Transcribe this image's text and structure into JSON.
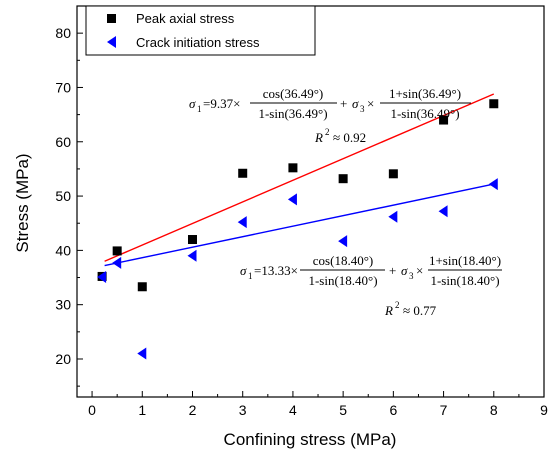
{
  "chart_data": {
    "type": "scatter",
    "xlabel": "Confining stress (MPa)",
    "ylabel": "Stress (MPa)",
    "xlim": [
      -0.3,
      9
    ],
    "ylim": [
      13,
      85
    ],
    "xticks": [
      "0",
      "1",
      "2",
      "3",
      "4",
      "5",
      "6",
      "7",
      "8",
      "9"
    ],
    "yticks": [
      "20",
      "30",
      "40",
      "50",
      "60",
      "70",
      "80"
    ],
    "grid": false,
    "legend_position": "top-left",
    "series": [
      {
        "name": "Peak axial stress",
        "marker": "square",
        "color": "#000000",
        "points": [
          [
            0.2,
            35.2
          ],
          [
            0.5,
            39.9
          ],
          [
            1,
            33.3
          ],
          [
            2,
            42.0
          ],
          [
            3,
            54.2
          ],
          [
            4,
            55.2
          ],
          [
            5,
            53.2
          ],
          [
            6,
            54.1
          ],
          [
            7,
            64.0
          ],
          [
            8,
            67.0
          ]
        ]
      },
      {
        "name": "Crack initiation stress",
        "marker": "triangle-left",
        "color": "#0000ff",
        "points": [
          [
            0.2,
            35.1
          ],
          [
            0.5,
            37.7
          ],
          [
            1,
            21.0
          ],
          [
            2,
            39.0
          ],
          [
            3,
            45.2
          ],
          [
            4,
            49.4
          ],
          [
            5,
            41.7
          ],
          [
            6,
            46.2
          ],
          [
            7,
            47.2
          ],
          [
            8,
            52.2
          ]
        ]
      }
    ],
    "fit_lines": [
      {
        "color": "#ff0000",
        "x": [
          0.25,
          8
        ],
        "y": [
          38.0,
          68.8
        ]
      },
      {
        "color": "#0000ff",
        "x": [
          0.25,
          8
        ],
        "y": [
          37.2,
          52.2
        ]
      }
    ],
    "annotations": {
      "peak": {
        "sigma": "σ",
        "sub1": "1",
        "sub3": "3",
        "lhs_eq": "=9.37×",
        "num1": "cos(36.49°)",
        "den1": "1-sin(36.49°)",
        "plus": "+",
        "times": "×",
        "num2": "1+sin(36.49°)",
        "den2": "1-sin(36.49°)",
        "r2_label": "R",
        "r2_exp": "2",
        "r2_value": "≈ 0.92"
      },
      "crack": {
        "sigma": "σ",
        "sub1": "1",
        "sub3": "3",
        "lhs_eq": "=13.33×",
        "num1": "cos(18.40°)",
        "den1": "1-sin(18.40°)",
        "plus": "+",
        "times": "×",
        "num2": "1+sin(18.40°)",
        "den2": "1-sin(18.40°)",
        "r2_label": "R",
        "r2_exp": "2",
        "r2_value": "≈ 0.77"
      }
    }
  }
}
